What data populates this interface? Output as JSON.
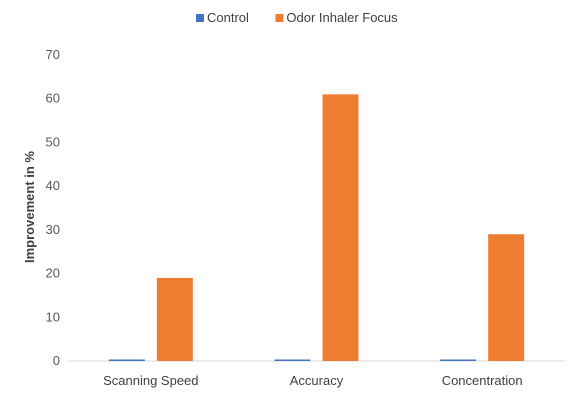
{
  "chart_data": {
    "type": "bar",
    "title": "",
    "xlabel": "",
    "ylabel": "Improvement in %",
    "ylim": [
      0,
      70
    ],
    "yticks": [
      0,
      10,
      20,
      30,
      40,
      50,
      60,
      70
    ],
    "categories": [
      "Scanning Speed",
      "Accuracy",
      "Concentration"
    ],
    "series": [
      {
        "name": "Control",
        "color": "#4472C4",
        "values": [
          0.3,
          0.3,
          0.3
        ]
      },
      {
        "name": "Odor Inhaler Focus",
        "color": "#ED7D31",
        "values": [
          19,
          61,
          29
        ]
      }
    ],
    "legend_position": "top",
    "grid": false
  }
}
